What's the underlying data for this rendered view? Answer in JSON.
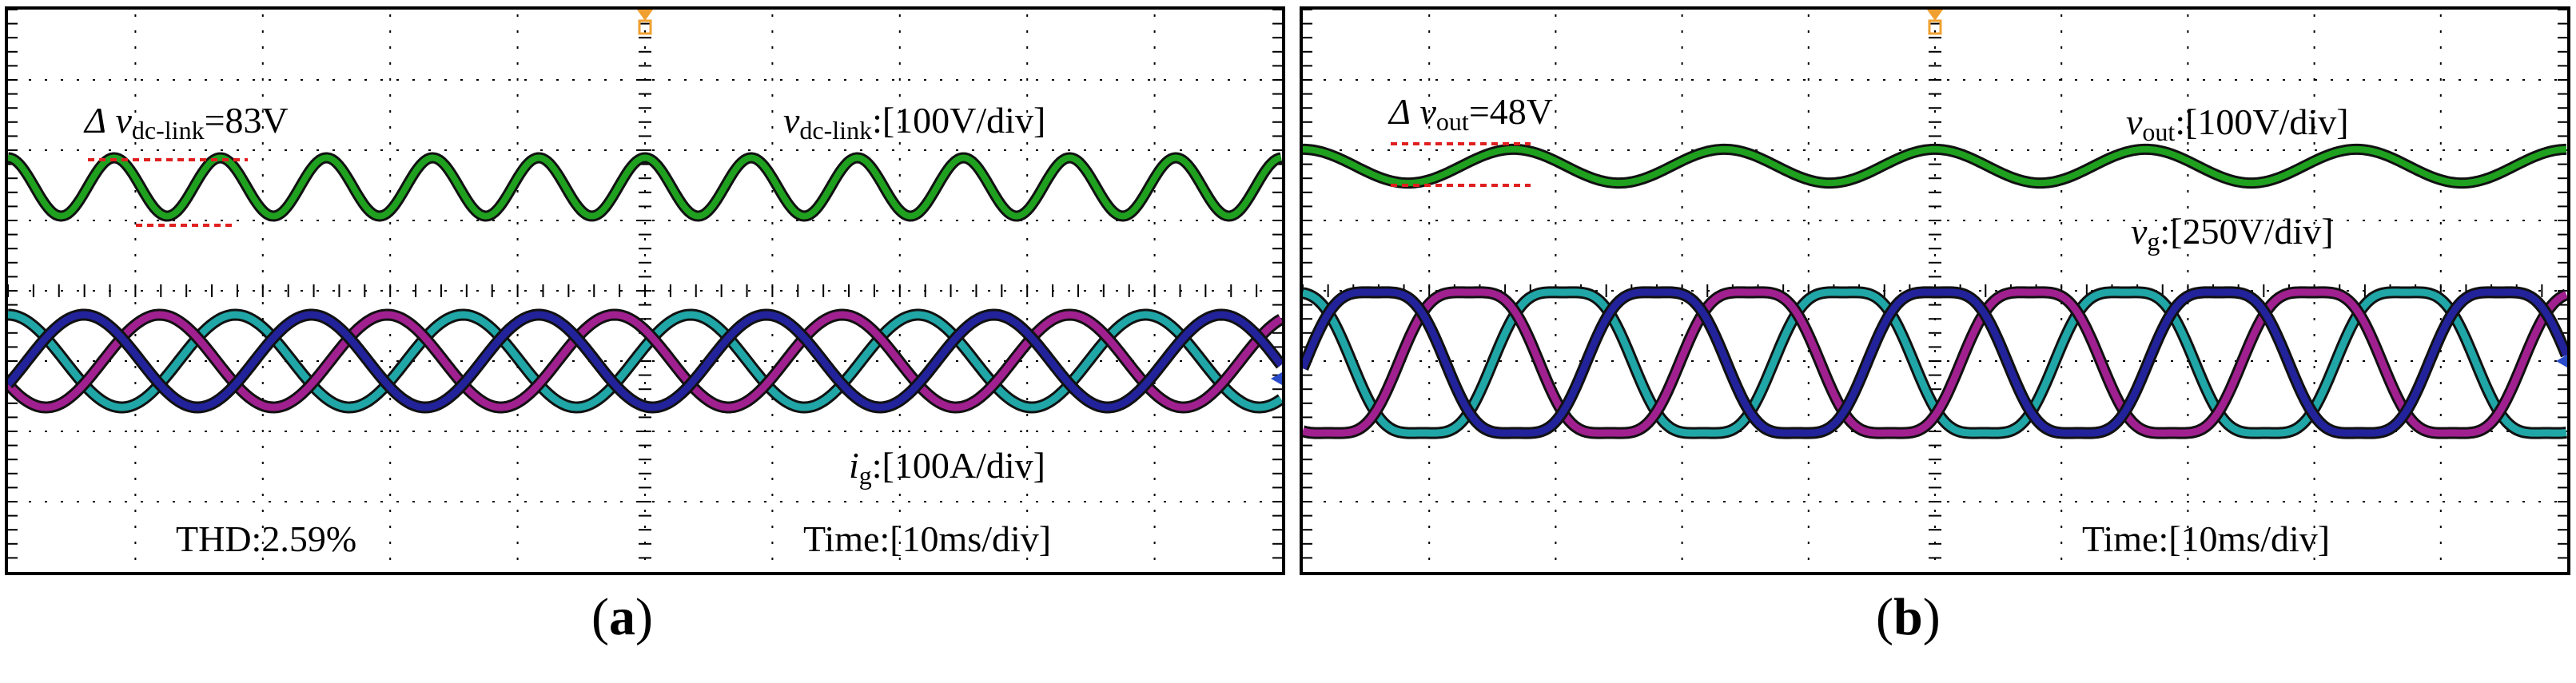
{
  "chart_data": [
    {
      "type": "line",
      "panel": "a",
      "caption_letter": "a",
      "title": "",
      "xlabel": "Time",
      "grid": true,
      "grid_divisions": {
        "x": 10,
        "y": 8
      },
      "time_per_div_ms": 10,
      "x_range_ms": [
        0,
        100
      ],
      "series": [
        {
          "name": "v_dc-link",
          "color": "#1fa01f",
          "scale": "100V/div",
          "waveform": "sinusoid",
          "ripple_cycles_visible": 12,
          "peak_to_peak_V": 83
        },
        {
          "name": "i_g phase a",
          "color": "#a0208f",
          "scale": "100A/div",
          "waveform": "sinusoid",
          "cycles_visible": 5.6
        },
        {
          "name": "i_g phase b",
          "color": "#22229a",
          "scale": "100A/div",
          "waveform": "sinusoid",
          "cycles_visible": 5.6
        },
        {
          "name": "i_g phase c",
          "color": "#20a6a6",
          "scale": "100A/div",
          "waveform": "sinusoid",
          "cycles_visible": 5.6
        }
      ],
      "annotations": {
        "delta_symbol": "Δ",
        "delta_var": "v",
        "delta_sub": "dc-link",
        "delta_value": "=83V",
        "scale_var": "v",
        "scale_sub": "dc-link",
        "scale_value": ":[100V/div]",
        "current_var": "i",
        "current_sub": "g",
        "current_value": ":[100A/div]",
        "thd": "THD:2.59%",
        "time": "Time:[10ms/div]"
      }
    },
    {
      "type": "line",
      "panel": "b",
      "caption_letter": "b",
      "title": "",
      "xlabel": "Time",
      "grid": true,
      "grid_divisions": {
        "x": 10,
        "y": 8
      },
      "time_per_div_ms": 10,
      "x_range_ms": [
        0,
        100
      ],
      "series": [
        {
          "name": "v_out",
          "color": "#1fa01f",
          "scale": "100V/div",
          "waveform": "sinusoid",
          "ripple_cycles_visible": 6,
          "peak_to_peak_V": 48
        },
        {
          "name": "v_g phase a",
          "color": "#a0208f",
          "scale": "250V/div",
          "waveform": "sinusoid",
          "cycles_visible": 4.5
        },
        {
          "name": "v_g phase b",
          "color": "#22229a",
          "scale": "250V/div",
          "waveform": "sinusoid",
          "cycles_visible": 4.5
        },
        {
          "name": "v_g phase c",
          "color": "#20a6a6",
          "scale": "250V/div",
          "waveform": "sinusoid",
          "cycles_visible": 4.5
        }
      ],
      "annotations": {
        "delta_symbol": "Δ",
        "delta_var": "v",
        "delta_sub": "out",
        "delta_value": "=48V",
        "scale_var": "v",
        "scale_sub": "out",
        "scale_value": ":[100V/div]",
        "voltage_var": "v",
        "voltage_sub": "g",
        "voltage_value": ":[250V/div]",
        "time": "Time:[10ms/div]"
      }
    }
  ],
  "captions": {
    "open": "(",
    "a": "a",
    "b": "b",
    "close": ")"
  }
}
